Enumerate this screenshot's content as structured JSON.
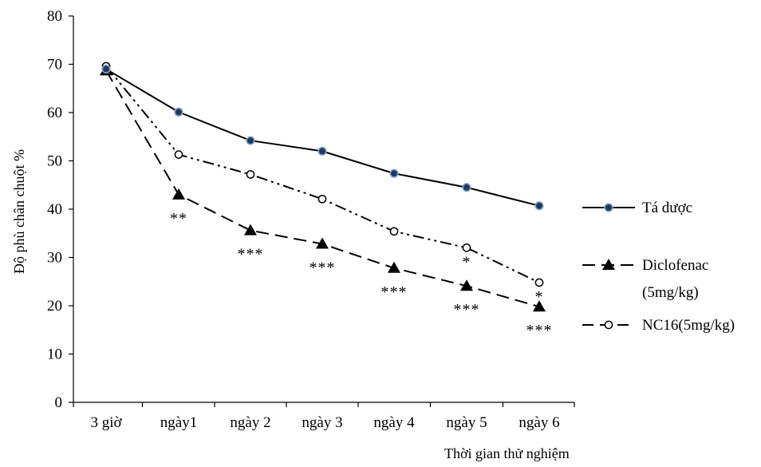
{
  "chart_data": {
    "type": "line",
    "title": "",
    "xlabel": "Thời gian thử nghiệm",
    "ylabel": "Độ phù chân chuột %",
    "ylim": [
      0,
      80
    ],
    "yticks": [
      "0",
      "10",
      "20",
      "30",
      "40",
      "50",
      "60",
      "70",
      "80"
    ],
    "categories": [
      "3 giờ",
      "ngày1",
      "ngày 2",
      "ngày 3",
      "ngày 4",
      "ngày 5",
      "ngày 6"
    ],
    "grid": false,
    "legend_position": "right",
    "series": [
      {
        "name": "Tá dược",
        "values": [
          69.0,
          60.1,
          54.2,
          52.0,
          47.4,
          44.5,
          40.7
        ],
        "line_style": "solid",
        "marker": "filled-circle",
        "marker_color": "#1f3a5f"
      },
      {
        "name": "Diclofenac (5mg/kg)",
        "legend_lines": [
          "Diclofenac",
          "(5mg/kg)"
        ],
        "values": [
          68.7,
          43.0,
          35.6,
          32.8,
          27.8,
          24.1,
          19.8
        ],
        "line_style": "dashed",
        "marker": "filled-triangle",
        "significance": [
          "",
          "**",
          "***",
          "***",
          "***",
          "***",
          "***"
        ]
      },
      {
        "name": "NC16(5mg/kg)",
        "values": [
          69.6,
          51.3,
          47.2,
          42.1,
          35.4,
          32.0,
          24.8
        ],
        "line_style": "dash-dot-dot",
        "marker": "open-circle",
        "significance": [
          "",
          "",
          "",
          "",
          "",
          "*",
          "*"
        ]
      }
    ]
  }
}
